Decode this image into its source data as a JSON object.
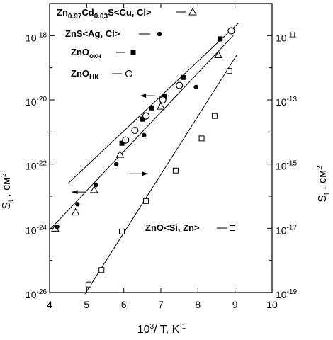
{
  "chart_data": {
    "type": "scatter",
    "title": "",
    "xlabel": {
      "base": "10",
      "sup": "3",
      "rest": "/ T, K",
      "unit_sup": "-1"
    },
    "ylabel_left": {
      "main": "S",
      "sub": "t",
      "rest": " , см",
      "sup": "2"
    },
    "ylabel_right": {
      "main": "S",
      "sub": "t",
      "rest": " , см",
      "sup": "2"
    },
    "xlim": [
      4,
      10
    ],
    "ylim_left_log10": [
      -26,
      -17
    ],
    "ylim_right_log10": [
      -19,
      -10
    ],
    "x_ticks": [
      "4",
      "5",
      "6",
      "7",
      "8",
      "9",
      "10"
    ],
    "y_left_ticks": [
      {
        "base": "10",
        "exp": "-18",
        "value": -18
      },
      {
        "base": "10",
        "exp": "-20",
        "value": -20
      },
      {
        "base": "10",
        "exp": "-22",
        "value": -22
      },
      {
        "base": "10",
        "exp": "-24",
        "value": -24
      },
      {
        "base": "10",
        "exp": "-26",
        "value": -26
      }
    ],
    "y_right_ticks": [
      {
        "base": "10",
        "exp": "-11",
        "value": -11
      },
      {
        "base": "10",
        "exp": "-13",
        "value": -13
      },
      {
        "base": "10",
        "exp": "-15",
        "value": -15
      },
      {
        "base": "10",
        "exp": "-17",
        "value": -17
      },
      {
        "base": "10",
        "exp": "-19",
        "value": -19
      }
    ],
    "series": [
      {
        "name": "Zn0.97Cd0.03S<Cu, Cl>",
        "legend_parts": [
          [
            "Zn",
            ""
          ],
          [
            "0.97",
            "sub"
          ],
          [
            "Cd",
            ""
          ],
          [
            "0.03",
            "sub"
          ],
          [
            "S<Cu, Cl>",
            ""
          ]
        ],
        "marker": "triangle-open",
        "axis": "left",
        "x": [
          4.15,
          4.7,
          5.2,
          5.9,
          7.0,
          8.55
        ],
        "log10_y": [
          -24.0,
          -23.5,
          -22.8,
          -21.7,
          -20.2,
          -18.6
        ],
        "fit": {
          "x": [
            4.0,
            8.95
          ],
          "log10_y": [
            -24.05,
            -18.0
          ]
        }
      },
      {
        "name": "ZnS<Ag, Cl>",
        "legend_parts": [
          [
            "ZnS<Ag, Cl>",
            ""
          ]
        ],
        "marker": "circle-filled",
        "axis": "left",
        "x": [
          4.2,
          4.75,
          5.25,
          5.8,
          6.55,
          7.95
        ],
        "log10_y": [
          -23.95,
          -23.25,
          -22.65,
          -22.0,
          -21.1,
          -19.6
        ],
        "fit": {
          "x": [
            4.5,
            9.1
          ],
          "log10_y": [
            -22.6,
            -17.6
          ]
        }
      },
      {
        "name": "ZnO охч",
        "legend_parts": [
          [
            "ZnO",
            ""
          ],
          [
            "охч",
            "sub"
          ]
        ],
        "marker": "square-filled",
        "axis": "left",
        "x": [
          5.95,
          6.5,
          6.75,
          7.1,
          7.6,
          8.6
        ],
        "log10_y": [
          -21.35,
          -20.6,
          -20.25,
          -19.9,
          -19.3,
          -18.1
        ],
        "fit": null
      },
      {
        "name": "ZnO НК",
        "legend_parts": [
          [
            "ZnO",
            ""
          ],
          [
            "НК",
            "sub"
          ]
        ],
        "marker": "circle-open",
        "axis": "left",
        "x": [
          6.05,
          6.3,
          6.6,
          7.05,
          7.5,
          8.9
        ],
        "log10_y": [
          -21.25,
          -20.95,
          -20.5,
          -20.0,
          -19.55,
          -17.85
        ],
        "fit": null
      },
      {
        "name": "ZnO<Si, Zn>",
        "legend_parts": [
          [
            "ZnO<Si, Zn>",
            ""
          ]
        ],
        "marker": "square-open",
        "axis": "right",
        "x": [
          5.05,
          5.4,
          5.95,
          6.6,
          7.4,
          8.1,
          8.45,
          8.85
        ],
        "log10_y": [
          -18.75,
          -18.3,
          -17.1,
          -16.15,
          -15.2,
          -14.2,
          -13.5,
          -12.1
        ],
        "fit": {
          "x": [
            4.95,
            9.05
          ],
          "log10_y": [
            -19.05,
            -11.6
          ]
        }
      }
    ],
    "annotations": {
      "arrows": [
        {
          "x1": 6.85,
          "x2": 6.45,
          "log10_y": -19.87,
          "axis": "left"
        },
        {
          "x1": 4.95,
          "x2": 4.6,
          "log10_y": -22.87,
          "axis": "left"
        },
        {
          "x1": 6.15,
          "x2": 6.65,
          "log10_y": -15.3,
          "axis": "right"
        }
      ]
    }
  }
}
